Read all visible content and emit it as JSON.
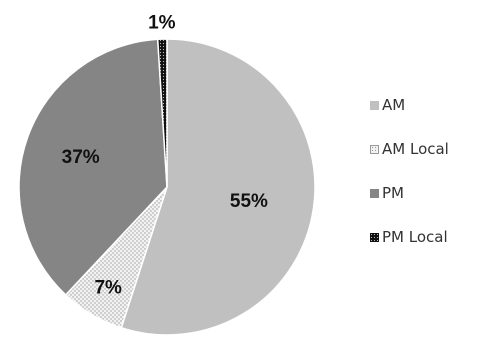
{
  "chart_data": {
    "type": "pie",
    "title": "",
    "slices": [
      {
        "label": "AM",
        "value": 55,
        "display": "55%",
        "color": "#c0c0c0",
        "pattern": "solid"
      },
      {
        "label": "AM Local",
        "value": 7,
        "display": "7%",
        "color": "#e8e8e8",
        "pattern": "dotted-light"
      },
      {
        "label": "PM",
        "value": 37,
        "display": "37%",
        "color": "#858585",
        "pattern": "solid"
      },
      {
        "label": "PM Local",
        "value": 1,
        "display": "1%",
        "color": "#111111",
        "pattern": "dotted-dark"
      }
    ],
    "start_angle_deg": 0,
    "direction": "clockwise",
    "legend_position": "right"
  }
}
